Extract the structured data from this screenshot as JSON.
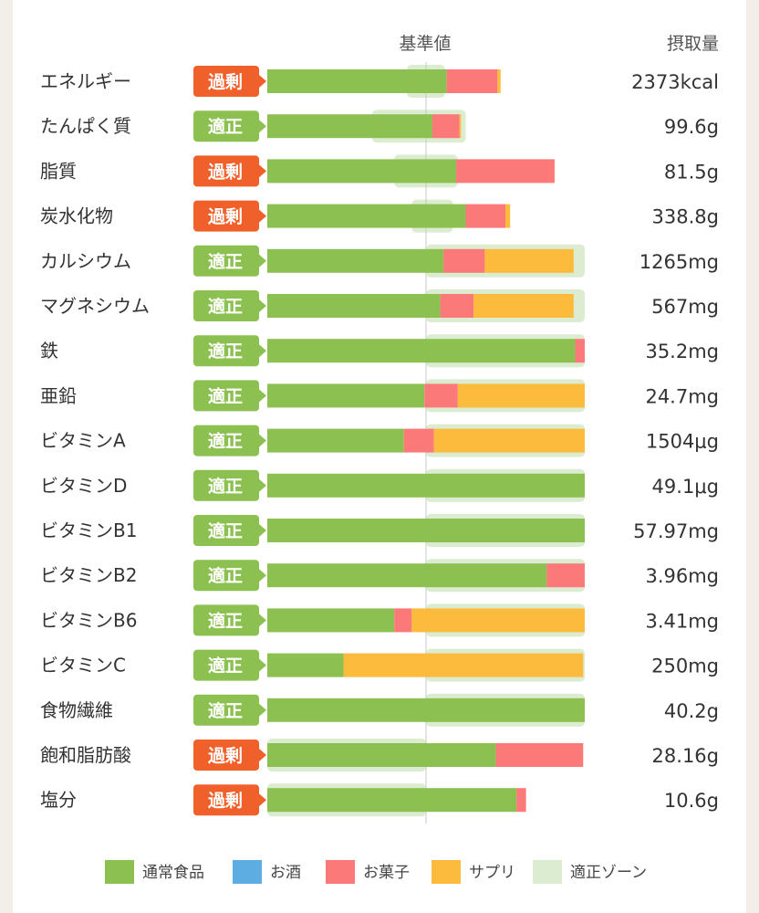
{
  "header": {
    "standard": "基準値",
    "intake": "摂取量"
  },
  "colors": {
    "normal": "#8cc152",
    "alcohol": "#5dade2",
    "sweets": "#fb7979",
    "supplement": "#fdbb3d",
    "zone": "#dcecd0",
    "excess_badge": "#f0602a",
    "proper_badge": "#8cc152"
  },
  "legend": [
    "通常食品",
    "お酒",
    "お菓子",
    "サプリ",
    "適正ゾーン"
  ],
  "chart_data": {
    "type": "bar",
    "orientation": "horizontal",
    "stacked": true,
    "series_names": [
      "通常食品",
      "お酒",
      "お菓子",
      "サプリ"
    ],
    "unit_note": "percent of standard value (基準値 = 100)",
    "rows": [
      {
        "name": "エネルギー",
        "status": "過剰",
        "value": "2373kcal",
        "normal": 113,
        "alcohol": 0,
        "sweets": 32,
        "supplement": 2,
        "zone": [
          88,
          112
        ]
      },
      {
        "name": "たんぱく質",
        "status": "適正",
        "value": "99.6g",
        "normal": 104,
        "alcohol": 0,
        "sweets": 17,
        "supplement": 1,
        "zone": [
          66,
          125
        ]
      },
      {
        "name": "脂質",
        "status": "過剰",
        "value": "81.5g",
        "normal": 119,
        "alcohol": 0,
        "sweets": 62,
        "supplement": 0,
        "zone": [
          80,
          120
        ]
      },
      {
        "name": "炭水化物",
        "status": "過剰",
        "value": "338.8g",
        "normal": 125,
        "alcohol": 0,
        "sweets": 25,
        "supplement": 3,
        "zone": [
          91,
          117
        ]
      },
      {
        "name": "カルシウム",
        "status": "適正",
        "value": "1265mg",
        "normal": 111,
        "alcohol": 0,
        "sweets": 26,
        "supplement": 56,
        "zone": [
          100,
          200
        ]
      },
      {
        "name": "マグネシウム",
        "status": "適正",
        "value": "567mg",
        "normal": 109,
        "alcohol": 0,
        "sweets": 21,
        "supplement": 63,
        "zone": [
          100,
          200
        ]
      },
      {
        "name": "鉄",
        "status": "適正",
        "value": "35.2mg",
        "normal": 194,
        "alcohol": 0,
        "sweets": 6,
        "supplement": 0,
        "zone": [
          100,
          200
        ]
      },
      {
        "name": "亜鉛",
        "status": "適正",
        "value": "24.7mg",
        "normal": 99,
        "alcohol": 0,
        "sweets": 21,
        "supplement": 80,
        "zone": [
          100,
          200
        ]
      },
      {
        "name": "ビタミンA",
        "status": "適正",
        "value": "1504μg",
        "normal": 86,
        "alcohol": 0,
        "sweets": 19,
        "supplement": 95,
        "zone": [
          100,
          200
        ]
      },
      {
        "name": "ビタミンD",
        "status": "適正",
        "value": "49.1μg",
        "normal": 200,
        "alcohol": 0,
        "sweets": 0,
        "supplement": 0,
        "zone": [
          100,
          200
        ]
      },
      {
        "name": "ビタミンB1",
        "status": "適正",
        "value": "57.97mg",
        "normal": 200,
        "alcohol": 0,
        "sweets": 0,
        "supplement": 0,
        "zone": [
          100,
          200
        ]
      },
      {
        "name": "ビタミンB2",
        "status": "適正",
        "value": "3.96mg",
        "normal": 176,
        "alcohol": 0,
        "sweets": 24,
        "supplement": 0,
        "zone": [
          100,
          200
        ]
      },
      {
        "name": "ビタミンB6",
        "status": "適正",
        "value": "3.41mg",
        "normal": 80,
        "alcohol": 0,
        "sweets": 11,
        "supplement": 109,
        "zone": [
          100,
          200
        ]
      },
      {
        "name": "ビタミンC",
        "status": "適正",
        "value": "250mg",
        "normal": 48,
        "alcohol": 0,
        "sweets": 0,
        "supplement": 151,
        "zone": [
          100,
          200
        ]
      },
      {
        "name": "食物繊維",
        "status": "適正",
        "value": "40.2g",
        "normal": 200,
        "alcohol": 0,
        "sweets": 0,
        "supplement": 0,
        "zone": [
          100,
          200
        ]
      },
      {
        "name": "飽和脂肪酸",
        "status": "過剰",
        "value": "28.16g",
        "normal": 144,
        "alcohol": 0,
        "sweets": 55,
        "supplement": 0,
        "zone": [
          0,
          100
        ]
      },
      {
        "name": "塩分",
        "status": "過剰",
        "value": "10.6g",
        "normal": 157,
        "alcohol": 0,
        "sweets": 6,
        "supplement": 0,
        "zone": [
          0,
          100
        ]
      }
    ]
  }
}
